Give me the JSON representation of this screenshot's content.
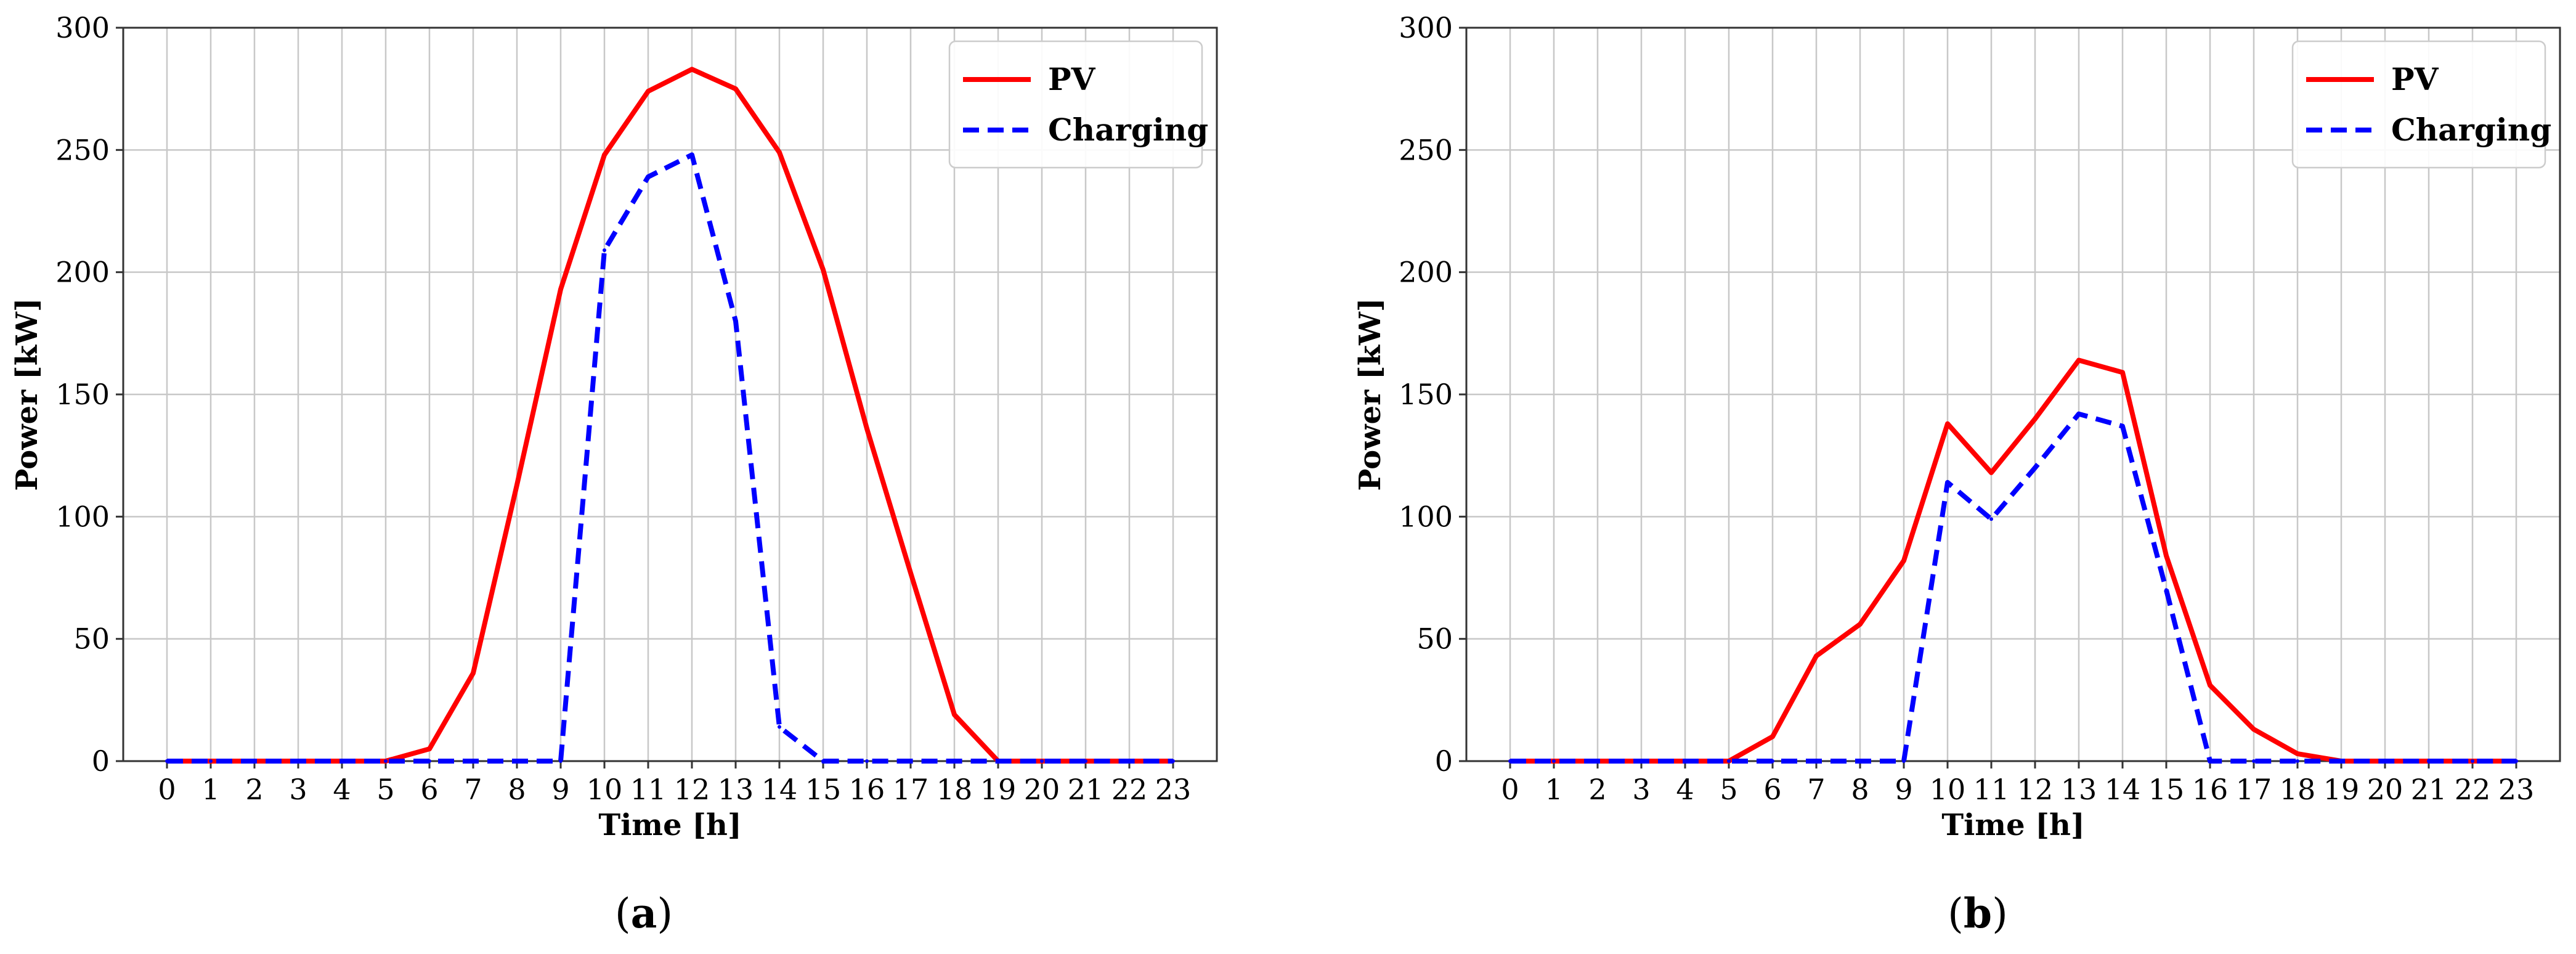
{
  "chart_data": [
    {
      "type": "line",
      "panel_label": "a",
      "title": "",
      "xlabel": "Time [h]",
      "ylabel": "Power [kW]",
      "x": [
        0,
        1,
        2,
        3,
        4,
        5,
        6,
        7,
        8,
        9,
        10,
        11,
        12,
        13,
        14,
        15,
        16,
        17,
        18,
        19,
        20,
        21,
        22,
        23
      ],
      "xlim": [
        -1,
        24
      ],
      "ylim": [
        0,
        300
      ],
      "yticks": [
        0,
        50,
        100,
        150,
        200,
        250,
        300
      ],
      "grid": true,
      "legend_position": "top-right",
      "series": [
        {
          "name": "PV",
          "color": "#ff0000",
          "style": "solid",
          "values": [
            0,
            0,
            0,
            0,
            0,
            0,
            5,
            36,
            113,
            193,
            248,
            274,
            283,
            275,
            249,
            201,
            136,
            77,
            19,
            0,
            0,
            0,
            0,
            0
          ]
        },
        {
          "name": "Charging",
          "color": "#0000ff",
          "style": "dashed",
          "values": [
            0,
            0,
            0,
            0,
            0,
            0,
            0,
            0,
            0,
            0,
            209,
            239,
            248,
            180,
            14,
            0,
            0,
            0,
            0,
            0,
            0,
            0,
            0,
            0
          ]
        }
      ]
    },
    {
      "type": "line",
      "panel_label": "b",
      "title": "",
      "xlabel": "Time [h]",
      "ylabel": "Power [kW]",
      "x": [
        0,
        1,
        2,
        3,
        4,
        5,
        6,
        7,
        8,
        9,
        10,
        11,
        12,
        13,
        14,
        15,
        16,
        17,
        18,
        19,
        20,
        21,
        22,
        23
      ],
      "xlim": [
        -1,
        24
      ],
      "ylim": [
        0,
        300
      ],
      "yticks": [
        0,
        50,
        100,
        150,
        200,
        250,
        300
      ],
      "grid": true,
      "legend_position": "top-right",
      "series": [
        {
          "name": "PV",
          "color": "#ff0000",
          "style": "solid",
          "values": [
            0,
            0,
            0,
            0,
            0,
            0,
            10,
            43,
            56,
            82,
            138,
            118,
            140,
            164,
            159,
            84,
            31,
            13,
            3,
            0,
            0,
            0,
            0,
            0
          ]
        },
        {
          "name": "Charging",
          "color": "#0000ff",
          "style": "dashed",
          "values": [
            0,
            0,
            0,
            0,
            0,
            0,
            0,
            0,
            0,
            0,
            114,
            99,
            120,
            142,
            137,
            70,
            0,
            0,
            0,
            0,
            0,
            0,
            0,
            0
          ]
        }
      ]
    }
  ]
}
